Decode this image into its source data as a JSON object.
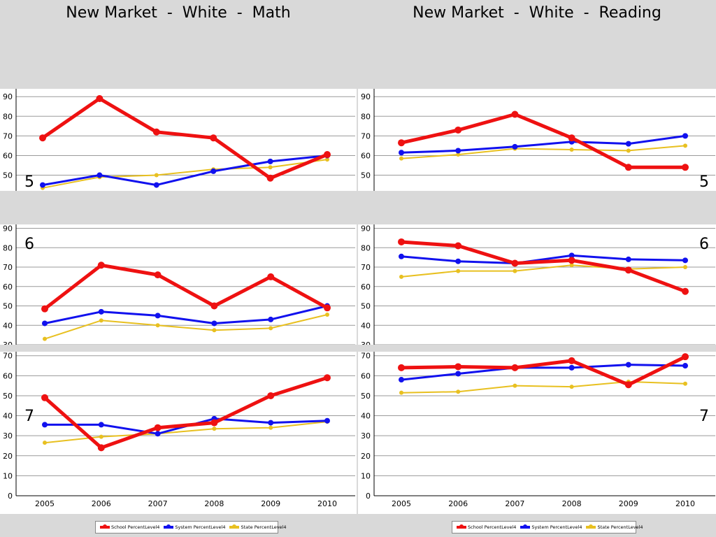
{
  "titles": {
    "left": "New Market  -  White  -  Math",
    "right": "New Market  -  White  -  Reading"
  },
  "colors": {
    "school": "#ee1111",
    "system": "#1111ee",
    "state": "#e8c020"
  },
  "legend": {
    "school": "School PercentLevel4",
    "system": "System PercentLevel4",
    "state": "State PercentLevel4"
  },
  "chart_data": [
    {
      "type": "line",
      "title": "New Market  -  White  -  Math",
      "grade_label": "5",
      "x": [
        "2005",
        "2006",
        "2007",
        "2008",
        "2009",
        "2010"
      ],
      "y_ticks": [
        "50",
        "60",
        "70",
        "80",
        "90"
      ],
      "ylim": [
        42,
        94
      ],
      "grid": true,
      "series": [
        {
          "name": "School PercentLevel4",
          "values": [
            69,
            89,
            72,
            69,
            48.5,
            60.5
          ]
        },
        {
          "name": "System PercentLevel4",
          "values": [
            45,
            50,
            45,
            52,
            57,
            60
          ]
        },
        {
          "name": "State PercentLevel4",
          "values": [
            43.5,
            49,
            50,
            53,
            54,
            58
          ]
        }
      ]
    },
    {
      "type": "line",
      "title": "New Market  -  White  -  Reading",
      "grade_label": "5",
      "x": [
        "2005",
        "2006",
        "2007",
        "2008",
        "2009",
        "2010"
      ],
      "y_ticks": [
        "50",
        "60",
        "70",
        "80",
        "90"
      ],
      "ylim": [
        42,
        94
      ],
      "grid": true,
      "series": [
        {
          "name": "School PercentLevel4",
          "values": [
            66.5,
            73,
            81,
            69,
            54,
            54
          ]
        },
        {
          "name": "System PercentLevel4",
          "values": [
            61.5,
            62.5,
            64.5,
            67,
            66,
            70
          ]
        },
        {
          "name": "State PercentLevel4",
          "values": [
            58.5,
            60.5,
            63.5,
            63,
            62.5,
            65
          ]
        }
      ]
    },
    {
      "type": "line",
      "title": "New Market  -  White  -  Math",
      "grade_label": "6",
      "x": [
        "2005",
        "2006",
        "2007",
        "2008",
        "2009",
        "2010"
      ],
      "y_ticks": [
        "30",
        "40",
        "50",
        "60",
        "70",
        "80",
        "90"
      ],
      "ylim": [
        30,
        92
      ],
      "grid": true,
      "series": [
        {
          "name": "School PercentLevel4",
          "values": [
            48.5,
            71,
            66,
            50,
            65,
            49
          ]
        },
        {
          "name": "System PercentLevel4",
          "values": [
            41,
            47,
            45,
            41,
            43,
            50
          ]
        },
        {
          "name": "State PercentLevel4",
          "values": [
            33,
            42.5,
            40,
            37.5,
            38.5,
            45.5
          ]
        }
      ]
    },
    {
      "type": "line",
      "title": "New Market  -  White  -  Reading",
      "grade_label": "6",
      "x": [
        "2005",
        "2006",
        "2007",
        "2008",
        "2009",
        "2010"
      ],
      "y_ticks": [
        "30",
        "40",
        "50",
        "60",
        "70",
        "80",
        "90"
      ],
      "ylim": [
        30,
        92
      ],
      "grid": true,
      "series": [
        {
          "name": "School PercentLevel4",
          "values": [
            83,
            81,
            72,
            73.5,
            68.5,
            57.5
          ]
        },
        {
          "name": "System PercentLevel4",
          "values": [
            75.5,
            73,
            72,
            76,
            74,
            73.5
          ]
        },
        {
          "name": "State PercentLevel4",
          "values": [
            65,
            68,
            68,
            71,
            69,
            70
          ]
        }
      ]
    },
    {
      "type": "line",
      "title": "New Market  -  White  -  Math",
      "grade_label": "7",
      "x": [
        "2005",
        "2006",
        "2007",
        "2008",
        "2009",
        "2010"
      ],
      "y_ticks": [
        "0",
        "10",
        "20",
        "30",
        "40",
        "50",
        "60",
        "70"
      ],
      "ylim": [
        0,
        72
      ],
      "grid": true,
      "series": [
        {
          "name": "School PercentLevel4",
          "values": [
            49,
            24,
            34,
            36.5,
            50,
            59
          ]
        },
        {
          "name": "System PercentLevel4",
          "values": [
            35.5,
            35.5,
            31,
            38.5,
            36.5,
            37.5
          ]
        },
        {
          "name": "State PercentLevel4",
          "values": [
            26.5,
            29.5,
            31,
            33.5,
            34,
            37
          ]
        }
      ]
    },
    {
      "type": "line",
      "title": "New Market  -  White  -  Reading",
      "grade_label": "7",
      "x": [
        "2005",
        "2006",
        "2007",
        "2008",
        "2009",
        "2010"
      ],
      "y_ticks": [
        "0",
        "10",
        "20",
        "30",
        "40",
        "50",
        "60",
        "70"
      ],
      "ylim": [
        0,
        72
      ],
      "grid": true,
      "series": [
        {
          "name": "School PercentLevel4",
          "values": [
            64,
            64.5,
            64,
            67.5,
            55.5,
            69.5
          ]
        },
        {
          "name": "System PercentLevel4",
          "values": [
            58,
            61,
            64,
            64,
            65.5,
            65
          ]
        },
        {
          "name": "State PercentLevel4",
          "values": [
            51.5,
            52,
            55,
            54.5,
            57,
            56
          ]
        }
      ]
    }
  ]
}
